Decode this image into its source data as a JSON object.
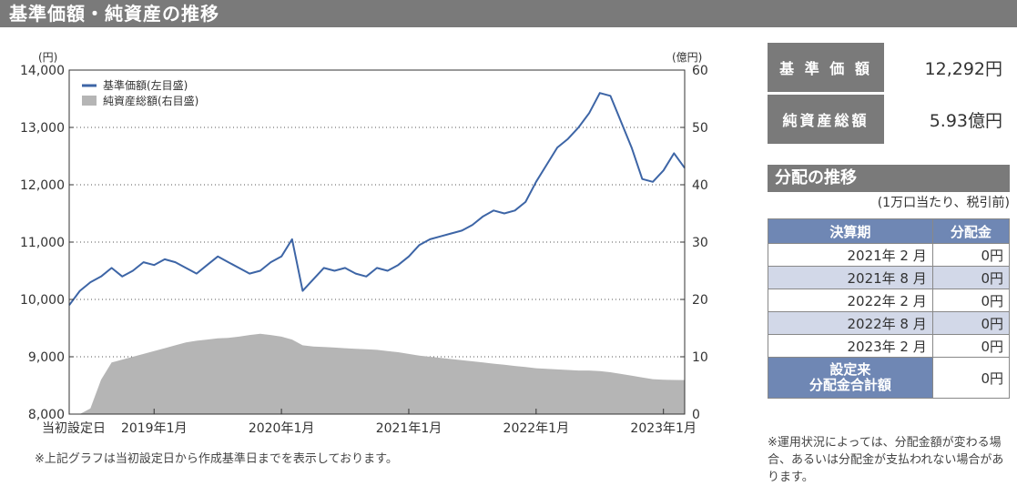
{
  "section_title": "基準価額・純資産の推移",
  "footnote": "※上記グラフは当初設定日から作成基準日までを表示しております。",
  "summary": {
    "nav_label": "基 準 価 額",
    "nav_value": "12,292円",
    "assets_label": "純資産総額",
    "assets_value": "5.93億円"
  },
  "distribution": {
    "title": "分配の推移",
    "note": "(1万口当たり、税引前)",
    "col_period": "決算期",
    "col_amount": "分配金",
    "rows": [
      {
        "period": "2021年 2 月",
        "amount": "0円"
      },
      {
        "period": "2021年 8 月",
        "amount": "0円"
      },
      {
        "period": "2022年 2 月",
        "amount": "0円"
      },
      {
        "period": "2022年 8 月",
        "amount": "0円"
      },
      {
        "period": "2023年 2 月",
        "amount": "0円"
      }
    ],
    "total_label_1": "設定来",
    "total_label_2": "分配金合計額",
    "total_value": "0円",
    "footnote": "※運用状況によっては、分配金額が変わる場合、あるいは分配金が支払われない場合があります。"
  },
  "colors": {
    "nav_line": "#3d65a6",
    "assets_area": "#b5b5b5",
    "grid": "#555555"
  },
  "chart_data": {
    "type": "line",
    "left_unit": "(円)",
    "right_unit": "(億円)",
    "y_left": {
      "min": 8000,
      "max": 14000,
      "ticks": [
        "8,000",
        "9,000",
        "10,000",
        "11,000",
        "12,000",
        "13,000",
        "14,000"
      ]
    },
    "y_right": {
      "min": 0,
      "max": 60,
      "ticks": [
        "0",
        "10",
        "20",
        "30",
        "40",
        "50",
        "60"
      ]
    },
    "x_range": [
      "2018-05",
      "2023-03"
    ],
    "x_ticks": [
      {
        "label": "当初設定日",
        "date": "2018-05"
      },
      {
        "label": "2019年1月",
        "date": "2019-01"
      },
      {
        "label": "2020年1月",
        "date": "2020-01"
      },
      {
        "label": "2021年1月",
        "date": "2021-01"
      },
      {
        "label": "2022年1月",
        "date": "2022-01"
      },
      {
        "label": "2023年1月",
        "date": "2023-01"
      }
    ],
    "grid": true,
    "legend_position": "top-left",
    "series": [
      {
        "name": "基準価額(左目盛)",
        "axis": "left",
        "type": "line",
        "points": [
          [
            "2018-05",
            9900
          ],
          [
            "2018-06",
            10150
          ],
          [
            "2018-07",
            10300
          ],
          [
            "2018-08",
            10400
          ],
          [
            "2018-09",
            10550
          ],
          [
            "2018-10",
            10400
          ],
          [
            "2018-11",
            10500
          ],
          [
            "2018-12",
            10650
          ],
          [
            "2019-01",
            10600
          ],
          [
            "2019-02",
            10700
          ],
          [
            "2019-03",
            10650
          ],
          [
            "2019-04",
            10550
          ],
          [
            "2019-05",
            10450
          ],
          [
            "2019-06",
            10600
          ],
          [
            "2019-07",
            10750
          ],
          [
            "2019-08",
            10650
          ],
          [
            "2019-09",
            10550
          ],
          [
            "2019-10",
            10450
          ],
          [
            "2019-11",
            10500
          ],
          [
            "2019-12",
            10650
          ],
          [
            "2020-01",
            10750
          ],
          [
            "2020-02",
            11050
          ],
          [
            "2020-03",
            10150
          ],
          [
            "2020-04",
            10350
          ],
          [
            "2020-05",
            10550
          ],
          [
            "2020-06",
            10500
          ],
          [
            "2020-07",
            10550
          ],
          [
            "2020-08",
            10450
          ],
          [
            "2020-09",
            10400
          ],
          [
            "2020-10",
            10550
          ],
          [
            "2020-11",
            10500
          ],
          [
            "2020-12",
            10600
          ],
          [
            "2021-01",
            10750
          ],
          [
            "2021-02",
            10950
          ],
          [
            "2021-03",
            11050
          ],
          [
            "2021-04",
            11100
          ],
          [
            "2021-05",
            11150
          ],
          [
            "2021-06",
            11200
          ],
          [
            "2021-07",
            11300
          ],
          [
            "2021-08",
            11450
          ],
          [
            "2021-09",
            11550
          ],
          [
            "2021-10",
            11500
          ],
          [
            "2021-11",
            11550
          ],
          [
            "2021-12",
            11700
          ],
          [
            "2022-01",
            12050
          ],
          [
            "2022-02",
            12350
          ],
          [
            "2022-03",
            12650
          ],
          [
            "2022-04",
            12800
          ],
          [
            "2022-05",
            13000
          ],
          [
            "2022-06",
            13250
          ],
          [
            "2022-07",
            13600
          ],
          [
            "2022-08",
            13550
          ],
          [
            "2022-09",
            13100
          ],
          [
            "2022-10",
            12650
          ],
          [
            "2022-11",
            12100
          ],
          [
            "2022-12",
            12050
          ],
          [
            "2023-01",
            12250
          ],
          [
            "2023-02",
            12550
          ],
          [
            "2023-03",
            12292
          ]
        ]
      },
      {
        "name": "純資産総額(右目盛)",
        "axis": "right",
        "type": "area",
        "points": [
          [
            "2018-05",
            0
          ],
          [
            "2018-06",
            0
          ],
          [
            "2018-07",
            1
          ],
          [
            "2018-08",
            6
          ],
          [
            "2018-09",
            9
          ],
          [
            "2018-10",
            9.5
          ],
          [
            "2018-11",
            10
          ],
          [
            "2018-12",
            10.5
          ],
          [
            "2019-01",
            11
          ],
          [
            "2019-02",
            11.5
          ],
          [
            "2019-03",
            12
          ],
          [
            "2019-04",
            12.5
          ],
          [
            "2019-05",
            12.8
          ],
          [
            "2019-06",
            13
          ],
          [
            "2019-07",
            13.2
          ],
          [
            "2019-08",
            13.3
          ],
          [
            "2019-09",
            13.5
          ],
          [
            "2019-10",
            13.8
          ],
          [
            "2019-11",
            14
          ],
          [
            "2019-12",
            13.8
          ],
          [
            "2020-01",
            13.5
          ],
          [
            "2020-02",
            13
          ],
          [
            "2020-03",
            12
          ],
          [
            "2020-04",
            11.8
          ],
          [
            "2020-05",
            11.7
          ],
          [
            "2020-06",
            11.6
          ],
          [
            "2020-07",
            11.5
          ],
          [
            "2020-08",
            11.4
          ],
          [
            "2020-09",
            11.3
          ],
          [
            "2020-10",
            11.2
          ],
          [
            "2020-11",
            11
          ],
          [
            "2020-12",
            10.8
          ],
          [
            "2021-01",
            10.5
          ],
          [
            "2021-02",
            10.2
          ],
          [
            "2021-03",
            10
          ],
          [
            "2021-04",
            9.8
          ],
          [
            "2021-05",
            9.6
          ],
          [
            "2021-06",
            9.4
          ],
          [
            "2021-07",
            9.2
          ],
          [
            "2021-08",
            9
          ],
          [
            "2021-09",
            8.8
          ],
          [
            "2021-10",
            8.6
          ],
          [
            "2021-11",
            8.4
          ],
          [
            "2021-12",
            8.2
          ],
          [
            "2022-01",
            8
          ],
          [
            "2022-02",
            7.9
          ],
          [
            "2022-03",
            7.8
          ],
          [
            "2022-04",
            7.7
          ],
          [
            "2022-05",
            7.6
          ],
          [
            "2022-06",
            7.6
          ],
          [
            "2022-07",
            7.5
          ],
          [
            "2022-08",
            7.3
          ],
          [
            "2022-09",
            7
          ],
          [
            "2022-10",
            6.7
          ],
          [
            "2022-11",
            6.4
          ],
          [
            "2022-12",
            6.1
          ],
          [
            "2023-01",
            6
          ],
          [
            "2023-02",
            5.95
          ],
          [
            "2023-03",
            5.93
          ]
        ]
      }
    ]
  }
}
